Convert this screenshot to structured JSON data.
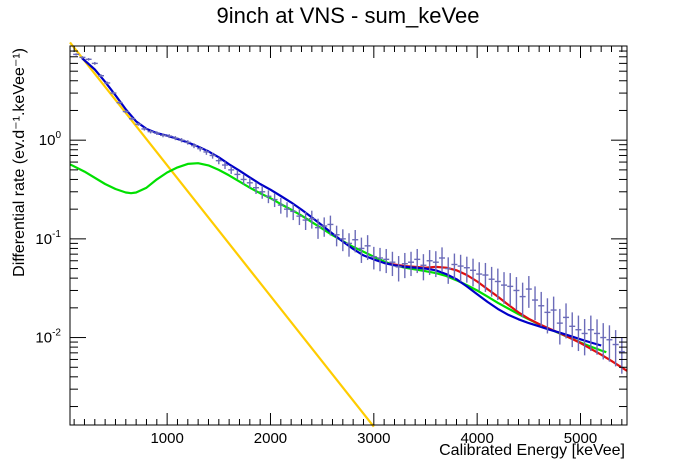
{
  "chart_data": {
    "type": "scatter",
    "title": "9inch at VNS - sum_keVee",
    "xlabel": "Calibrated Energy [keVee]",
    "ylabel": "Differential rate (ev.d⁻¹.keVee⁻¹)",
    "xlim": [
      60,
      5450
    ],
    "ylim": [
      0.0013,
      9.0
    ],
    "y_scale": "log",
    "x_ticks": [
      1000,
      2000,
      3000,
      4000,
      5000
    ],
    "y_ticks": [
      {
        "value": 0.01,
        "base": "10",
        "exp": "-2"
      },
      {
        "value": 0.1,
        "base": "10",
        "exp": "-1"
      },
      {
        "value": 1,
        "base": "10",
        "exp": "0"
      }
    ],
    "colors": {
      "data": "#6b6bb8",
      "total_fit": "#0000c8",
      "extended_fit": "#e01010",
      "gaussian_component": "#00e000",
      "exponential_component": "#ffcc00"
    },
    "series": [
      {
        "role": "measured data",
        "x": [
          120,
          180,
          240,
          300,
          360,
          420,
          480,
          540,
          600,
          660,
          720,
          780,
          840,
          900,
          960,
          1020,
          1080,
          1140,
          1200,
          1260,
          1320,
          1380,
          1440,
          1500,
          1560,
          1620,
          1680,
          1740,
          1800,
          1860,
          1920,
          1980,
          2040,
          2100,
          2160,
          2220,
          2280,
          2340,
          2400,
          2460,
          2520,
          2580,
          2640,
          2700,
          2760,
          2820,
          2880,
          2940,
          3000,
          3060,
          3120,
          3180,
          3240,
          3300,
          3360,
          3420,
          3480,
          3540,
          3600,
          3660,
          3720,
          3780,
          3840,
          3900,
          3960,
          4020,
          4080,
          4140,
          4200,
          4260,
          4320,
          4380,
          4440,
          4500,
          4560,
          4620,
          4680,
          4740,
          4800,
          4860,
          4920,
          4980,
          5040,
          5100,
          5160,
          5220,
          5280,
          5340,
          5400
        ],
        "y": [
          7.4,
          6.9,
          6.6,
          6.0,
          4.5,
          3.8,
          3.0,
          2.4,
          1.95,
          1.65,
          1.45,
          1.3,
          1.22,
          1.18,
          1.12,
          1.1,
          1.05,
          1.0,
          0.95,
          0.88,
          0.82,
          0.76,
          0.7,
          0.62,
          0.56,
          0.5,
          0.45,
          0.4,
          0.37,
          0.33,
          0.3,
          0.27,
          0.25,
          0.22,
          0.2,
          0.19,
          0.17,
          0.155,
          0.16,
          0.13,
          0.135,
          0.14,
          0.11,
          0.1,
          0.09,
          0.098,
          0.08,
          0.085,
          0.066,
          0.064,
          0.062,
          0.058,
          0.052,
          0.056,
          0.058,
          0.062,
          0.054,
          0.06,
          0.058,
          0.064,
          0.05,
          0.055,
          0.053,
          0.051,
          0.048,
          0.044,
          0.043,
          0.039,
          0.037,
          0.034,
          0.033,
          0.03,
          0.026,
          0.031,
          0.024,
          0.021,
          0.018,
          0.019,
          0.014,
          0.016,
          0.013,
          0.012,
          0.011,
          0.012,
          0.011,
          0.01,
          0.0095,
          0.0085,
          0.0072
        ],
        "error_low": [
          7.2,
          6.7,
          6.4,
          5.8,
          4.35,
          3.68,
          2.9,
          2.32,
          1.88,
          1.59,
          1.4,
          1.25,
          1.17,
          1.13,
          1.07,
          1.05,
          1.0,
          0.95,
          0.9,
          0.83,
          0.77,
          0.71,
          0.65,
          0.57,
          0.51,
          0.455,
          0.405,
          0.355,
          0.325,
          0.285,
          0.255,
          0.23,
          0.21,
          0.18,
          0.165,
          0.155,
          0.138,
          0.123,
          0.127,
          0.1,
          0.105,
          0.108,
          0.084,
          0.075,
          0.066,
          0.073,
          0.057,
          0.061,
          0.049,
          0.047,
          0.045,
          0.042,
          0.037,
          0.04,
          0.042,
          0.045,
          0.038,
          0.043,
          0.041,
          0.046,
          0.035,
          0.039,
          0.037,
          0.036,
          0.033,
          0.03,
          0.029,
          0.026,
          0.024,
          0.022,
          0.021,
          0.019,
          0.016,
          0.02,
          0.015,
          0.013,
          0.011,
          0.012,
          0.0085,
          0.0098,
          0.008,
          0.0073,
          0.0066,
          0.0073,
          0.0067,
          0.006,
          0.0057,
          0.0051,
          0.0043
        ],
        "error_high": [
          7.6,
          7.1,
          6.8,
          6.2,
          4.65,
          3.92,
          3.1,
          2.48,
          2.02,
          1.71,
          1.5,
          1.35,
          1.27,
          1.23,
          1.17,
          1.15,
          1.1,
          1.05,
          1.0,
          0.93,
          0.87,
          0.81,
          0.75,
          0.67,
          0.61,
          0.545,
          0.495,
          0.445,
          0.415,
          0.375,
          0.345,
          0.31,
          0.29,
          0.26,
          0.235,
          0.225,
          0.202,
          0.187,
          0.193,
          0.16,
          0.165,
          0.172,
          0.136,
          0.125,
          0.114,
          0.123,
          0.103,
          0.109,
          0.083,
          0.081,
          0.079,
          0.074,
          0.067,
          0.072,
          0.074,
          0.079,
          0.07,
          0.077,
          0.075,
          0.082,
          0.065,
          0.071,
          0.069,
          0.066,
          0.063,
          0.058,
          0.057,
          0.052,
          0.05,
          0.046,
          0.045,
          0.041,
          0.036,
          0.042,
          0.033,
          0.029,
          0.025,
          0.026,
          0.0195,
          0.0222,
          0.018,
          0.0167,
          0.0154,
          0.0167,
          0.0153,
          0.014,
          0.0133,
          0.0119,
          0.0101
        ]
      },
      {
        "role": "total fit",
        "x": [
          175,
          300,
          400,
          500,
          600,
          700,
          800,
          900,
          1000,
          1100,
          1200,
          1300,
          1400,
          1500,
          1600,
          1700,
          1800,
          1900,
          2000,
          2100,
          2200,
          2300,
          2400,
          2500,
          2600,
          2700,
          2800,
          2900,
          3000,
          3100,
          3200,
          3300,
          3400,
          3500,
          3600,
          3700,
          3800,
          3900,
          4000,
          4100,
          4200,
          4300,
          4400,
          4500,
          4600,
          4700,
          4800,
          4900,
          5000,
          5100,
          5200
        ],
        "y": [
          6.8,
          5.2,
          3.9,
          2.85,
          2.05,
          1.55,
          1.3,
          1.18,
          1.11,
          1.03,
          0.95,
          0.86,
          0.77,
          0.67,
          0.57,
          0.49,
          0.42,
          0.36,
          0.315,
          0.272,
          0.234,
          0.198,
          0.165,
          0.137,
          0.113,
          0.094,
          0.079,
          0.068,
          0.062,
          0.057,
          0.054,
          0.052,
          0.051,
          0.05,
          0.048,
          0.044,
          0.039,
          0.033,
          0.0275,
          0.023,
          0.0195,
          0.017,
          0.0153,
          0.014,
          0.013,
          0.012,
          0.0112,
          0.0104,
          0.0096,
          0.0089,
          0.0083
        ]
      },
      {
        "role": "extended fit",
        "x": [
          3150,
          3300,
          3400,
          3500,
          3600,
          3700,
          3800,
          3900,
          4000,
          4100,
          4200,
          4300,
          4400,
          4500,
          4600,
          4700,
          4800,
          4900,
          5000,
          5100,
          5200,
          5300,
          5450
        ],
        "y": [
          0.056,
          0.053,
          0.052,
          0.051,
          0.052,
          0.051,
          0.048,
          0.043,
          0.037,
          0.031,
          0.026,
          0.0215,
          0.018,
          0.0155,
          0.0137,
          0.0123,
          0.0111,
          0.0099,
          0.0088,
          0.0077,
          0.0067,
          0.0058,
          0.0046
        ]
      },
      {
        "role": "gaussian component",
        "x": [
          60,
          200,
          400,
          500,
          600,
          650,
          700,
          800,
          900,
          1000,
          1100,
          1200,
          1300,
          1400,
          1500,
          1600,
          1700,
          1800,
          1900,
          2000,
          2100,
          2200,
          2300,
          2400,
          2500,
          2600,
          2700,
          2800,
          2900,
          3000,
          3100,
          3200,
          3300,
          3400,
          3500,
          3600,
          3700,
          3800,
          3900,
          4000,
          4100,
          4200,
          4300,
          4400,
          4500,
          4600,
          4700,
          4800,
          4900,
          5000,
          5100,
          5200,
          5250
        ],
        "y": [
          0.57,
          0.48,
          0.36,
          0.32,
          0.295,
          0.29,
          0.295,
          0.33,
          0.4,
          0.47,
          0.53,
          0.575,
          0.585,
          0.555,
          0.5,
          0.44,
          0.38,
          0.33,
          0.29,
          0.258,
          0.225,
          0.198,
          0.172,
          0.148,
          0.127,
          0.109,
          0.095,
          0.083,
          0.074,
          0.066,
          0.059,
          0.054,
          0.051,
          0.049,
          0.047,
          0.045,
          0.042,
          0.038,
          0.034,
          0.03,
          0.026,
          0.0225,
          0.0197,
          0.0173,
          0.0153,
          0.0136,
          0.0122,
          0.011,
          0.0099,
          0.0089,
          0.0081,
          0.0074,
          0.0071
        ]
      },
      {
        "role": "exponential component",
        "x": [
          60,
          3000
        ],
        "y": [
          9.8,
          0.00125
        ]
      }
    ]
  }
}
